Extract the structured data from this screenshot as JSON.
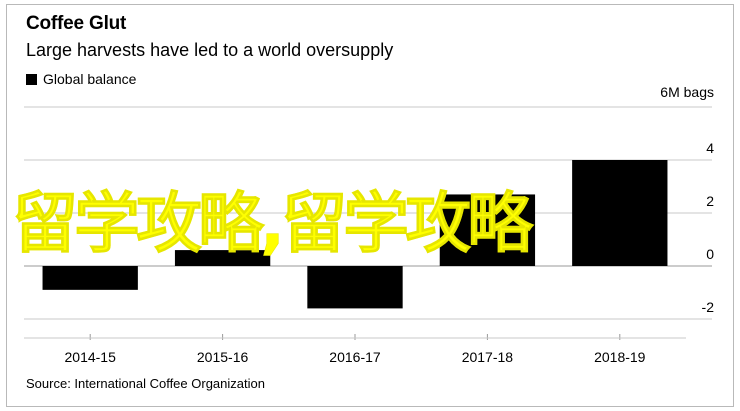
{
  "header": {
    "title": "Coffee Glut",
    "subtitle": "Large harvests have led to a world oversupply"
  },
  "legend": {
    "label": "Global balance"
  },
  "footer": {
    "source": "Source: International Coffee Organization"
  },
  "overlay": {
    "text": "留学攻略,留学攻略"
  },
  "colors": {
    "bar": "#000000",
    "overlay": "#ffff00",
    "grid": "#c8c8c8"
  },
  "chart_data": {
    "type": "bar",
    "categories": [
      "2014-15",
      "2015-16",
      "2016-17",
      "2017-18",
      "2018-19"
    ],
    "series": [
      {
        "name": "Global balance",
        "values": [
          -0.9,
          0.6,
          -1.6,
          2.7,
          4.0
        ]
      }
    ],
    "y_unit_label": "6M bags",
    "yticks": [
      -2,
      0,
      2,
      4
    ],
    "ylim": [
      -2,
      6
    ],
    "grid": true,
    "legend_position": "top-left"
  }
}
